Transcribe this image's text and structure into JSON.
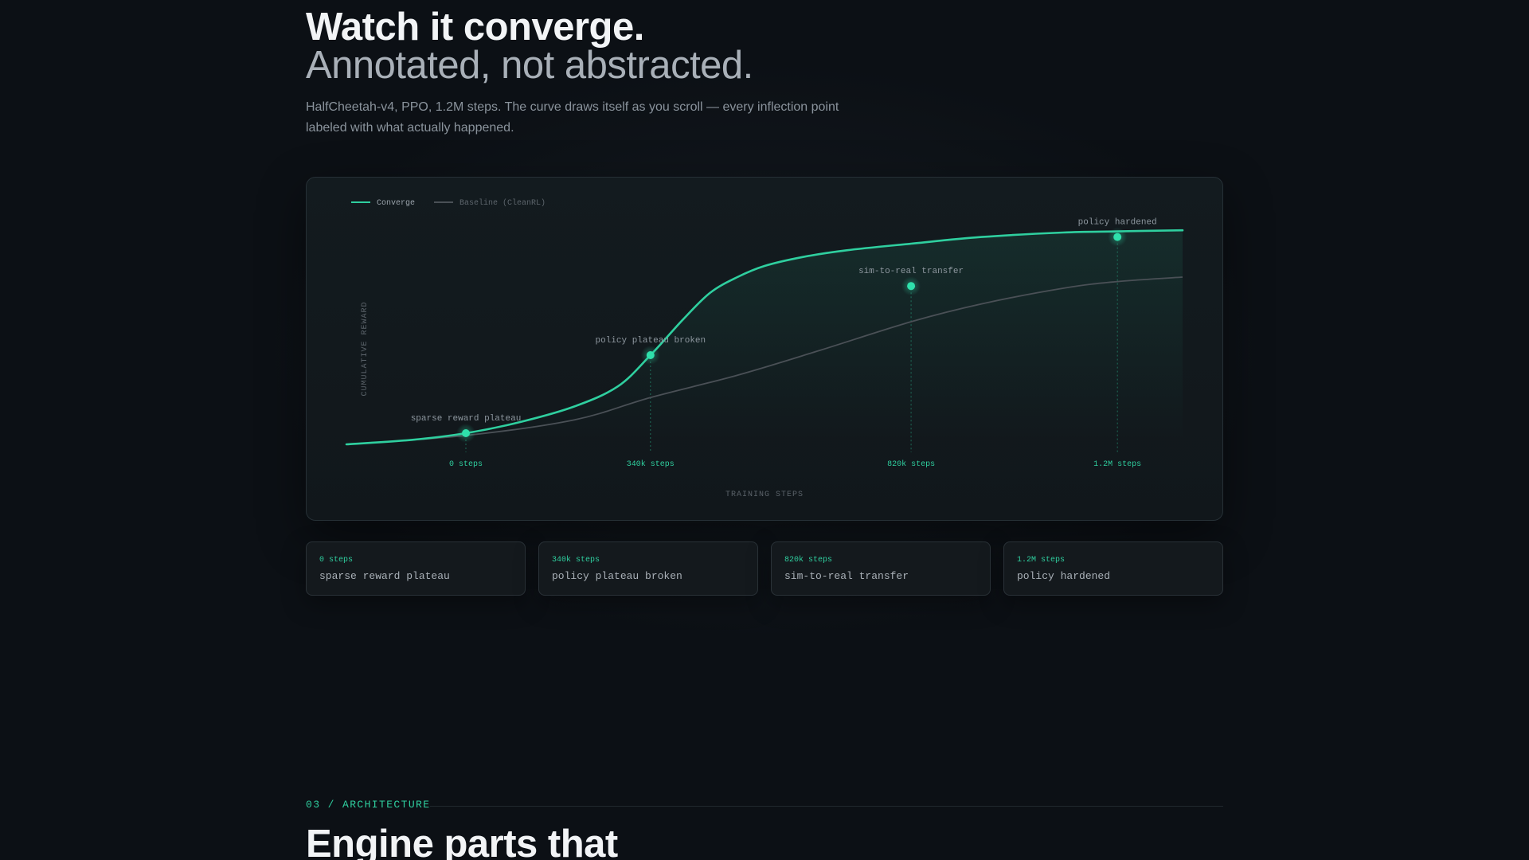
{
  "hero": {
    "title": "Watch it converge.",
    "subtitle": "Annotated, not abstracted.",
    "description": "HalfCheetah-v4, PPO, 1.2M steps. The curve draws itself as you scroll — every inflection point labeled with what actually happened."
  },
  "colors": {
    "accent": "#2fcf9f",
    "baseline": "#4a5056",
    "background": "#0c1015"
  },
  "chart_data": {
    "type": "line",
    "xlabel": "TRAINING STEPS",
    "ylabel": "CUMULATIVE REWARD",
    "xlim": [
      -220000,
      1320000
    ],
    "ylim": [
      0,
      100
    ],
    "grid": false,
    "legend": "top-left",
    "series": [
      {
        "name": "Converge",
        "color": "#2fcf9f",
        "x": [
          -220000,
          -100000,
          0,
          100000,
          200000,
          280000,
          340000,
          400000,
          450000,
          500000,
          550000,
          620000,
          700000,
          820000,
          950000,
          1100000,
          1200000,
          1320000
        ],
        "y": [
          0,
          2,
          5,
          10,
          17,
          26,
          40,
          56,
          68,
          75,
          80,
          84,
          87,
          90,
          93,
          95,
          95.5,
          96
        ]
      },
      {
        "name": "Baseline (CleanRL)",
        "color": "#4a5056",
        "x": [
          -220000,
          0,
          200000,
          340000,
          500000,
          650000,
          820000,
          950000,
          1100000,
          1200000,
          1320000
        ],
        "y": [
          0,
          4,
          11,
          21,
          31,
          42,
          55,
          63,
          70,
          73,
          75
        ]
      }
    ],
    "annotations": [
      {
        "step": "0 steps",
        "label": "sparse reward plateau",
        "x": 0,
        "y": 5
      },
      {
        "step": "340k steps",
        "label": "policy plateau broken",
        "x": 340000,
        "y": 40
      },
      {
        "step": "820k steps",
        "label": "sim-to-real transfer",
        "x": 820000,
        "y": 71
      },
      {
        "step": "1.2M steps",
        "label": "policy hardened",
        "x": 1200000,
        "y": 93
      }
    ]
  },
  "milestones": [
    {
      "step": "0 steps",
      "label": "sparse reward plateau"
    },
    {
      "step": "340k steps",
      "label": "policy plateau broken"
    },
    {
      "step": "820k steps",
      "label": "sim-to-real transfer"
    },
    {
      "step": "1.2M steps",
      "label": "policy hardened"
    }
  ],
  "section": {
    "label": "03 / ARCHITECTURE",
    "title": "Engine parts that"
  }
}
